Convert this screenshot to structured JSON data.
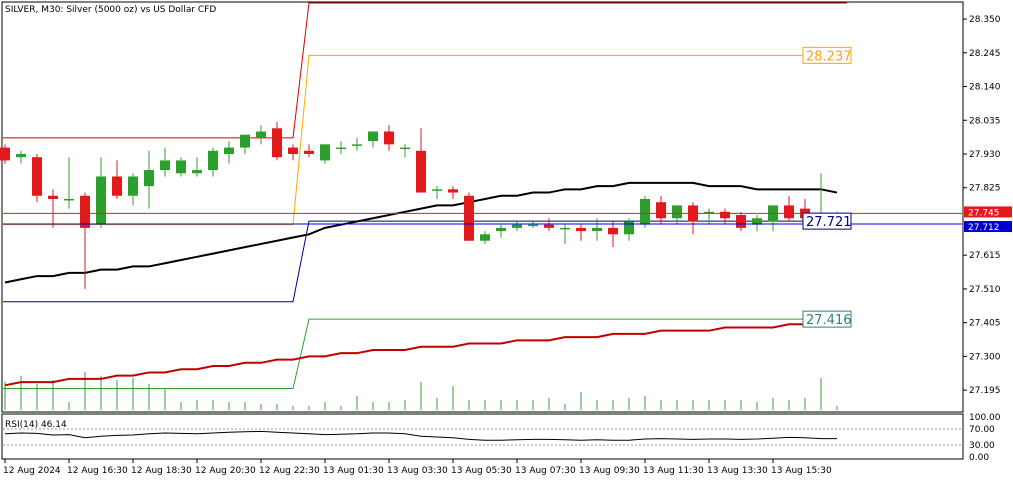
{
  "chart_data": {
    "type": "candlestick",
    "title": "SILVER, M30:  Silver (5000 oz) vs US Dollar CFD",
    "price_axis": {
      "ylim": [
        27.13,
        28.4
      ],
      "ticks": [
        "28.350",
        "28.245",
        "28.140",
        "28.035",
        "27.930",
        "27.825",
        "27.615",
        "27.510",
        "27.405",
        "27.300",
        "27.195"
      ],
      "tick_values": [
        28.35,
        28.245,
        28.14,
        28.035,
        27.93,
        27.825,
        27.615,
        27.51,
        27.405,
        27.3,
        27.195
      ]
    },
    "time_axis": {
      "labels": [
        "12 Aug 2024",
        "12 Aug 16:30",
        "12 Aug 18:30",
        "12 Aug 20:30",
        "12 Aug 22:30",
        "13 Aug 01:30",
        "13 Aug 03:30",
        "13 Aug 05:30",
        "13 Aug 07:30",
        "13 Aug 09:30",
        "13 Aug 11:30",
        "13 Aug 13:30",
        "13 Aug 15:30"
      ],
      "label_bars": [
        0,
        4,
        8,
        12,
        16,
        20,
        24,
        28,
        32,
        36,
        40,
        44,
        48
      ]
    },
    "colors": {
      "bull": "#2ca02c",
      "bear": "#e31a1c",
      "volume": "#2ca02c",
      "grid": "#ffffff",
      "ma_black": "#000000",
      "ma_red": "#c00000",
      "upper_band": "#d40000",
      "orange_band": "#ffa500",
      "blue_band": "#00008b",
      "green_band": "#2ca02c",
      "bid_line": "#e31a1c",
      "ask_line": "#0000cd"
    },
    "candles": [
      {
        "o": 27.95,
        "h": 27.96,
        "l": 27.9,
        "c": 27.91
      },
      {
        "o": 27.92,
        "h": 27.94,
        "l": 27.9,
        "c": 27.93
      },
      {
        "o": 27.92,
        "h": 27.93,
        "l": 27.78,
        "c": 27.8
      },
      {
        "o": 27.8,
        "h": 27.82,
        "l": 27.7,
        "c": 27.79
      },
      {
        "o": 27.79,
        "h": 27.92,
        "l": 27.76,
        "c": 27.79
      },
      {
        "o": 27.8,
        "h": 27.81,
        "l": 27.51,
        "c": 27.7
      },
      {
        "o": 27.71,
        "h": 27.92,
        "l": 27.7,
        "c": 27.86
      },
      {
        "o": 27.86,
        "h": 27.91,
        "l": 27.79,
        "c": 27.8
      },
      {
        "o": 27.8,
        "h": 27.87,
        "l": 27.77,
        "c": 27.86
      },
      {
        "o": 27.83,
        "h": 27.94,
        "l": 27.76,
        "c": 27.88
      },
      {
        "o": 27.88,
        "h": 27.95,
        "l": 27.86,
        "c": 27.91
      },
      {
        "o": 27.87,
        "h": 27.92,
        "l": 27.86,
        "c": 27.91
      },
      {
        "o": 27.87,
        "h": 27.92,
        "l": 27.86,
        "c": 27.88
      },
      {
        "o": 27.88,
        "h": 27.95,
        "l": 27.86,
        "c": 27.94
      },
      {
        "o": 27.93,
        "h": 27.97,
        "l": 27.9,
        "c": 27.95
      },
      {
        "o": 27.95,
        "h": 27.99,
        "l": 27.93,
        "c": 27.99
      },
      {
        "o": 27.98,
        "h": 28.02,
        "l": 27.96,
        "c": 28.0
      },
      {
        "o": 28.01,
        "h": 28.03,
        "l": 27.91,
        "c": 27.92
      },
      {
        "o": 27.95,
        "h": 27.96,
        "l": 27.91,
        "c": 27.93
      },
      {
        "o": 27.94,
        "h": 27.96,
        "l": 27.92,
        "c": 27.93
      },
      {
        "o": 27.91,
        "h": 27.96,
        "l": 27.9,
        "c": 27.96
      },
      {
        "o": 27.95,
        "h": 27.97,
        "l": 27.93,
        "c": 27.95
      },
      {
        "o": 27.96,
        "h": 27.98,
        "l": 27.94,
        "c": 27.96
      },
      {
        "o": 27.97,
        "h": 28.0,
        "l": 27.95,
        "c": 28.0
      },
      {
        "o": 28.0,
        "h": 28.02,
        "l": 27.94,
        "c": 27.96
      },
      {
        "o": 27.95,
        "h": 27.96,
        "l": 27.92,
        "c": 27.95
      },
      {
        "o": 27.94,
        "h": 28.01,
        "l": 27.81,
        "c": 27.81
      },
      {
        "o": 27.82,
        "h": 27.83,
        "l": 27.79,
        "c": 27.82
      },
      {
        "o": 27.82,
        "h": 27.83,
        "l": 27.79,
        "c": 27.81
      },
      {
        "o": 27.8,
        "h": 27.81,
        "l": 27.66,
        "c": 27.66
      },
      {
        "o": 27.66,
        "h": 27.69,
        "l": 27.65,
        "c": 27.68
      },
      {
        "o": 27.69,
        "h": 27.71,
        "l": 27.67,
        "c": 27.7
      },
      {
        "o": 27.7,
        "h": 27.72,
        "l": 27.69,
        "c": 27.71
      },
      {
        "o": 27.71,
        "h": 27.72,
        "l": 27.7,
        "c": 27.71
      },
      {
        "o": 27.71,
        "h": 27.73,
        "l": 27.69,
        "c": 27.7
      },
      {
        "o": 27.7,
        "h": 27.71,
        "l": 27.65,
        "c": 27.7
      },
      {
        "o": 27.7,
        "h": 27.71,
        "l": 27.66,
        "c": 27.69
      },
      {
        "o": 27.69,
        "h": 27.73,
        "l": 27.66,
        "c": 27.7
      },
      {
        "o": 27.7,
        "h": 27.72,
        "l": 27.64,
        "c": 27.68
      },
      {
        "o": 27.68,
        "h": 27.73,
        "l": 27.66,
        "c": 27.72
      },
      {
        "o": 27.71,
        "h": 27.8,
        "l": 27.7,
        "c": 27.79
      },
      {
        "o": 27.78,
        "h": 27.8,
        "l": 27.71,
        "c": 27.73
      },
      {
        "o": 27.73,
        "h": 27.77,
        "l": 27.71,
        "c": 27.77
      },
      {
        "o": 27.77,
        "h": 27.78,
        "l": 27.68,
        "c": 27.72
      },
      {
        "o": 27.75,
        "h": 27.76,
        "l": 27.71,
        "c": 27.75
      },
      {
        "o": 27.75,
        "h": 27.76,
        "l": 27.71,
        "c": 27.73
      },
      {
        "o": 27.74,
        "h": 27.75,
        "l": 27.69,
        "c": 27.7
      },
      {
        "o": 27.71,
        "h": 27.74,
        "l": 27.69,
        "c": 27.73
      },
      {
        "o": 27.72,
        "h": 27.77,
        "l": 27.69,
        "c": 27.77
      },
      {
        "o": 27.77,
        "h": 27.8,
        "l": 27.72,
        "c": 27.73
      },
      {
        "o": 27.76,
        "h": 27.79,
        "l": 27.72,
        "c": 27.73
      },
      {
        "o": 27.72,
        "h": 27.87,
        "l": 27.71,
        "c": 27.72
      },
      {
        "o": 27.72,
        "h": 27.75,
        "l": 27.71,
        "c": 27.73
      }
    ],
    "volume": [
      28,
      34,
      26,
      30,
      8,
      38,
      34,
      30,
      32,
      26,
      22,
      8,
      10,
      10,
      8,
      8,
      6,
      6,
      4,
      4,
      8,
      4,
      14,
      8,
      8,
      10,
      28,
      12,
      24,
      10,
      10,
      10,
      10,
      10,
      12,
      6,
      18,
      10,
      10,
      12,
      14,
      10,
      10,
      10,
      10,
      10,
      10,
      8,
      12,
      10,
      12,
      32,
      4
    ],
    "ma_black": [
      27.53,
      27.54,
      27.55,
      27.55,
      27.56,
      27.56,
      27.57,
      27.57,
      27.58,
      27.58,
      27.59,
      27.6,
      27.61,
      27.62,
      27.63,
      27.64,
      27.65,
      27.66,
      27.67,
      27.68,
      27.7,
      27.71,
      27.72,
      27.73,
      27.74,
      27.75,
      27.76,
      27.77,
      27.77,
      27.78,
      27.79,
      27.8,
      27.8,
      27.81,
      27.81,
      27.82,
      27.82,
      27.83,
      27.83,
      27.84,
      27.84,
      27.84,
      27.84,
      27.84,
      27.83,
      27.83,
      27.83,
      27.82,
      27.82,
      27.82,
      27.82,
      27.82,
      27.81
    ],
    "ma_red": [
      27.21,
      27.22,
      27.22,
      27.22,
      27.23,
      27.23,
      27.23,
      27.24,
      27.24,
      27.25,
      27.25,
      27.26,
      27.26,
      27.27,
      27.27,
      27.28,
      27.28,
      27.29,
      27.29,
      27.3,
      27.3,
      27.31,
      27.31,
      27.32,
      27.32,
      27.32,
      27.33,
      27.33,
      27.33,
      27.34,
      27.34,
      27.34,
      27.35,
      27.35,
      27.35,
      27.36,
      27.36,
      27.36,
      27.37,
      27.37,
      27.37,
      27.38,
      27.38,
      27.38,
      27.38,
      27.39,
      27.39,
      27.39,
      27.39,
      27.4,
      27.4,
      27.4,
      27.4
    ],
    "upper_band": {
      "before": 27.98,
      "after": 28.4,
      "switch_bar": 19
    },
    "orange_band": {
      "before": 27.71,
      "after": 28.237,
      "switch_bar": 19
    },
    "blue_band": {
      "before": 27.47,
      "after": 27.721,
      "switch_bar": 19
    },
    "green_band": {
      "before": 27.2,
      "after": 27.416,
      "switch_bar": 19
    },
    "bid_price": 27.745,
    "ask_price": 27.712,
    "labels": {
      "orange_value": "28.237",
      "blue_value": "27.721",
      "green_value": "27.416",
      "bid_tag": "27.745",
      "ask_tag": "27.712"
    },
    "rsi": {
      "label": "RSI(14) 46.14",
      "period": 14,
      "last": 46.14,
      "levels": [
        100,
        70,
        30,
        0
      ],
      "level_labels": [
        "100.00",
        "70.00",
        "30.00",
        "0.00"
      ],
      "values": [
        58,
        60,
        59,
        55,
        56,
        48,
        52,
        54,
        55,
        58,
        60,
        59,
        58,
        60,
        62,
        63,
        64,
        62,
        60,
        58,
        56,
        57,
        58,
        60,
        60,
        58,
        52,
        50,
        48,
        44,
        42,
        42,
        43,
        44,
        44,
        43,
        42,
        43,
        42,
        42,
        45,
        46,
        45,
        44,
        45,
        45,
        44,
        45,
        47,
        49,
        48,
        46,
        46
      ]
    }
  }
}
